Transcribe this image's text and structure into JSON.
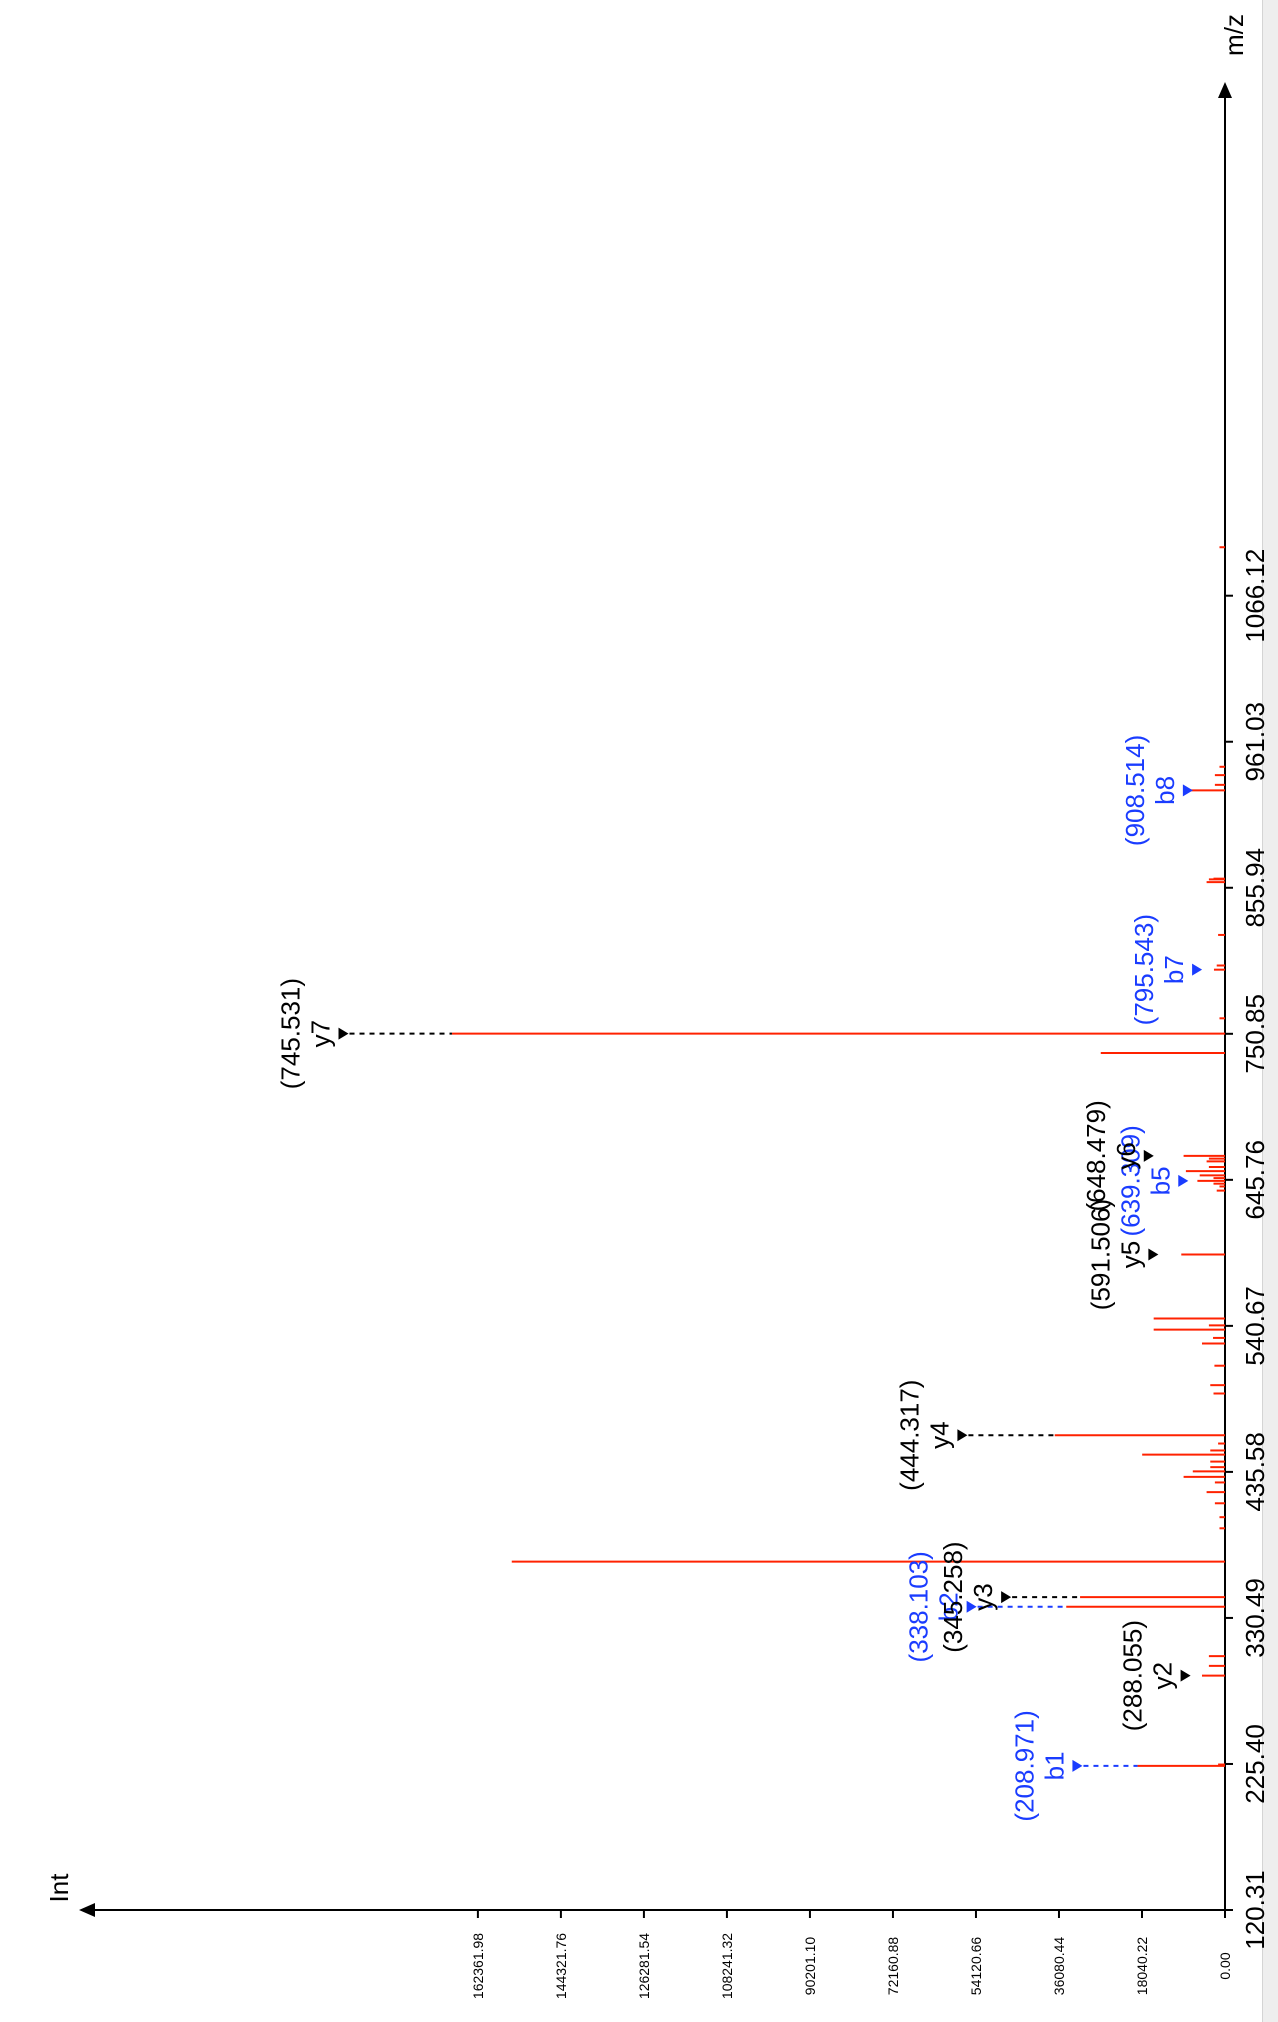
{
  "colors": {
    "peak": "#ff2200",
    "b_ion": "#1a3cff",
    "y_ion": "#000000",
    "axis": "#000000"
  },
  "chart_data": {
    "type": "bar",
    "orientation": "rotated-90-clockwise (m/z axis runs bottom-to-top, intensity axis runs right-to-left)",
    "xlabel": "m/z",
    "ylabel": "Int",
    "x_ticks": [
      "120.31",
      "225.40",
      "330.49",
      "435.58",
      "540.67",
      "645.76",
      "750.85",
      "855.94",
      "961.03",
      "1066.12"
    ],
    "y_ticks": [
      "0.00",
      "18040.22",
      "36080.44",
      "54120.66",
      "72160.88",
      "90201.10",
      "108241.32",
      "126281.54",
      "144321.76",
      "162361.98"
    ],
    "xlim": [
      120.31,
      1171.21
    ],
    "ylim": [
      0,
      180402.2
    ],
    "peaks": [
      {
        "mz": 224.0,
        "intensity": 19000
      },
      {
        "mz": 225.0,
        "intensity": 1500
      },
      {
        "mz": 289.0,
        "intensity": 5000
      },
      {
        "mz": 296.0,
        "intensity": 3500
      },
      {
        "mz": 303.0,
        "intensity": 3500
      },
      {
        "mz": 338.5,
        "intensity": 34500
      },
      {
        "mz": 345.5,
        "intensity": 31500
      },
      {
        "mz": 371.0,
        "intensity": 155000
      },
      {
        "mz": 395.0,
        "intensity": 1200
      },
      {
        "mz": 403.0,
        "intensity": 1200
      },
      {
        "mz": 413.0,
        "intensity": 2200
      },
      {
        "mz": 421.0,
        "intensity": 4000
      },
      {
        "mz": 428.0,
        "intensity": 2200
      },
      {
        "mz": 432.0,
        "intensity": 9000
      },
      {
        "mz": 436.0,
        "intensity": 7000
      },
      {
        "mz": 439.0,
        "intensity": 3200
      },
      {
        "mz": 443.0,
        "intensity": 3200
      },
      {
        "mz": 448.0,
        "intensity": 18000
      },
      {
        "mz": 451.0,
        "intensity": 3200
      },
      {
        "mz": 456.0,
        "intensity": 1500
      },
      {
        "mz": 462.0,
        "intensity": 37000
      },
      {
        "mz": 492.0,
        "intensity": 2500
      },
      {
        "mz": 498.0,
        "intensity": 3200
      },
      {
        "mz": 512.0,
        "intensity": 2300
      },
      {
        "mz": 528.0,
        "intensity": 5000
      },
      {
        "mz": 532.0,
        "intensity": 2600
      },
      {
        "mz": 538.0,
        "intensity": 15500
      },
      {
        "mz": 541.0,
        "intensity": 3500
      },
      {
        "mz": 546.0,
        "intensity": 15500
      },
      {
        "mz": 592.0,
        "intensity": 9500
      },
      {
        "mz": 638.0,
        "intensity": 1800
      },
      {
        "mz": 641.0,
        "intensity": 1200
      },
      {
        "mz": 643.0,
        "intensity": 2500
      },
      {
        "mz": 645.0,
        "intensity": 6000
      },
      {
        "mz": 647.0,
        "intensity": 2500
      },
      {
        "mz": 649.0,
        "intensity": 5500
      },
      {
        "mz": 652.0,
        "intensity": 8500
      },
      {
        "mz": 655.0,
        "intensity": 3500
      },
      {
        "mz": 659.0,
        "intensity": 4000
      },
      {
        "mz": 661.0,
        "intensity": 3500
      },
      {
        "mz": 663.0,
        "intensity": 9000
      },
      {
        "mz": 737.0,
        "intensity": 27000
      },
      {
        "mz": 751.0,
        "intensity": 168000
      },
      {
        "mz": 762.0,
        "intensity": 1200
      },
      {
        "mz": 797.0,
        "intensity": 2400
      },
      {
        "mz": 800.0,
        "intensity": 1800
      },
      {
        "mz": 822.0,
        "intensity": 1500
      },
      {
        "mz": 860.0,
        "intensity": 4000
      },
      {
        "mz": 862.0,
        "intensity": 3500
      },
      {
        "mz": 862.5,
        "intensity": 2500
      },
      {
        "mz": 926.0,
        "intensity": 8500
      },
      {
        "mz": 930.0,
        "intensity": 2200
      },
      {
        "mz": 937.0,
        "intensity": 2200
      },
      {
        "mz": 943.0,
        "intensity": 1200
      },
      {
        "mz": 1101.0,
        "intensity": 1200
      }
    ],
    "annotations": [
      {
        "ion": "b1",
        "mz_label": "(208.971)",
        "type": "b",
        "peak_mz": 224.0,
        "marker_intensity": 32500,
        "guide": "dashed"
      },
      {
        "ion": "y2",
        "mz_label": "(288.055)",
        "type": "y",
        "peak_mz": 289.0,
        "marker_intensity": 9000,
        "guide": "none"
      },
      {
        "ion": "b2",
        "mz_label": "(338.103)",
        "type": "b",
        "peak_mz": 338.5,
        "marker_intensity": 55500,
        "guide": "dashed"
      },
      {
        "ion": "y3",
        "mz_label": "(345.258)",
        "type": "y",
        "peak_mz": 345.5,
        "marker_intensity": 48000,
        "guide": "dashed"
      },
      {
        "ion": "y4",
        "mz_label": "(444.317)",
        "type": "y",
        "peak_mz": 462.0,
        "marker_intensity": 57500,
        "guide": "dashed"
      },
      {
        "ion": "y5",
        "mz_label": "(591.506)",
        "type": "y",
        "peak_mz": 592.0,
        "marker_intensity": 16000,
        "guide": "none"
      },
      {
        "ion": "b5",
        "mz_label": "(639.309)",
        "type": "b",
        "peak_mz": 645.0,
        "marker_intensity": 9500,
        "guide": "none"
      },
      {
        "ion": "y6",
        "mz_label": "(648.479)",
        "type": "y",
        "peak_mz": 663.0,
        "marker_intensity": 17000,
        "guide": "none"
      },
      {
        "ion": "y7",
        "mz_label": "(745.531)",
        "type": "y",
        "peak_mz": 751.0,
        "marker_intensity": 192000,
        "guide": "dashed"
      },
      {
        "ion": "b7",
        "mz_label": "(795.543)",
        "type": "b",
        "peak_mz": 797.0,
        "marker_intensity": 6500,
        "guide": "none"
      },
      {
        "ion": "b8",
        "mz_label": "(908.514)",
        "type": "b",
        "peak_mz": 926.0,
        "marker_intensity": 8500,
        "guide": "none"
      }
    ]
  }
}
